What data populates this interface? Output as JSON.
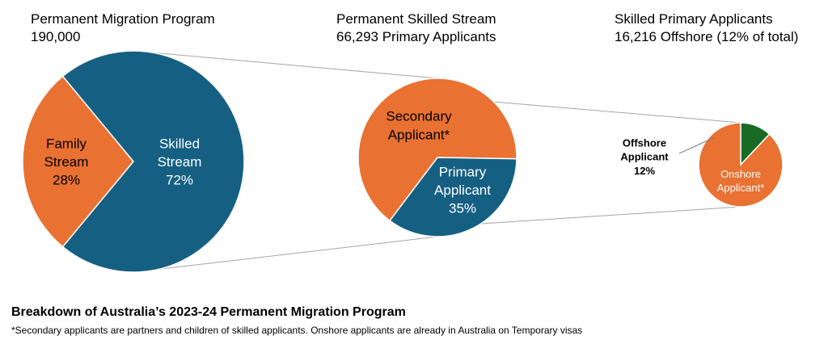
{
  "chart_data": [
    {
      "type": "pie",
      "title": "Permanent Migration Program",
      "subtitle": "190,000",
      "slices": [
        {
          "label_lines": [
            "Family",
            "Stream",
            "28%"
          ],
          "value": 28,
          "color": "#E97132"
        },
        {
          "label_lines": [
            "Skilled",
            "Stream",
            "72%"
          ],
          "value": 72,
          "color": "#156082"
        }
      ]
    },
    {
      "type": "pie",
      "title": "Permanent Skilled Stream",
      "subtitle": "66,293 Primary Applicants",
      "slices": [
        {
          "label_lines": [
            "Secondary",
            "Applicant*"
          ],
          "value": 65,
          "color": "#E97132"
        },
        {
          "label_lines": [
            "Primary",
            "Applicant",
            "35%"
          ],
          "value": 35,
          "color": "#156082"
        }
      ]
    },
    {
      "type": "pie",
      "title": "Skilled Primary Applicants",
      "subtitle": "16,216 Offshore (12% of total)",
      "slices": [
        {
          "label_lines": [
            "Offshore",
            "Applicant",
            "12%"
          ],
          "value": 12,
          "color": "#196B24"
        },
        {
          "label_lines": [
            "Onshore",
            "Applicant*"
          ],
          "value": 88,
          "color": "#E97132"
        }
      ]
    }
  ],
  "footer": {
    "title": "Breakdown of Australia’s 2023-24 Permanent Migration Program",
    "note": "*Secondary applicants are partners and children of skilled applicants. Onshore applicants are already in Australia on Temporary visas"
  }
}
